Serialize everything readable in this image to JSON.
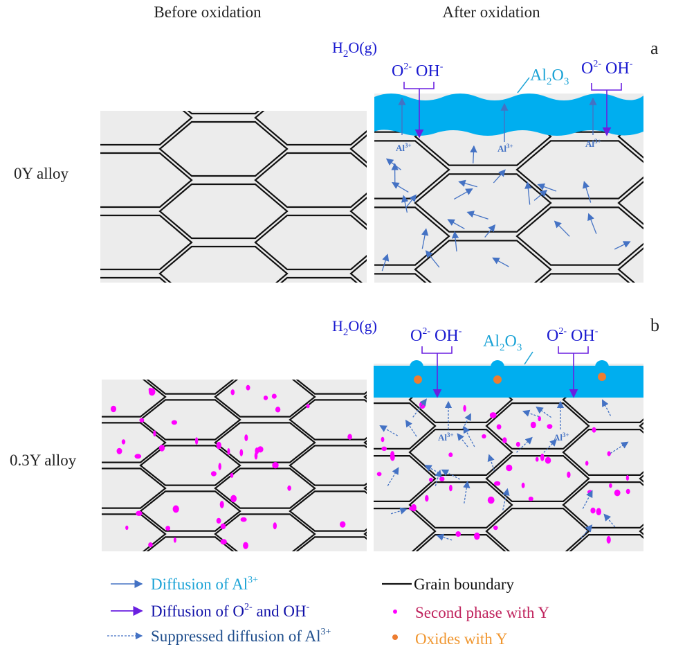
{
  "headers": {
    "before": "Before oxidation",
    "after": "After oxidation"
  },
  "rows": [
    {
      "label": "0Y alloy",
      "panel_letter": "a"
    },
    {
      "label": "0.3Y alloy",
      "panel_letter": "b"
    }
  ],
  "annotations": {
    "water": {
      "main": "H",
      "sub": "2",
      "tail": "O(g)"
    },
    "oxygen_ion": {
      "main": "O",
      "sup": "2-"
    },
    "hydroxide_ion": {
      "main": "OH",
      "sup": "-"
    },
    "alumina": {
      "a": "Al",
      "sub1": "2",
      "b": "O",
      "sub2": "3"
    },
    "al_ion": {
      "main": "Al",
      "sup": "3+"
    }
  },
  "legend": {
    "al_diffusion": {
      "text": "Diffusion of Al",
      "sup": "3+"
    },
    "o_diffusion": {
      "text": "Diffusion of O",
      "sup1": "2-",
      "mid": " and OH",
      "sup2": "-"
    },
    "suppressed": {
      "text": "Suppressed diffusion of Al",
      "sup": "3+"
    },
    "grain_boundary": "Grain boundary",
    "second_phase": "Second phase with Y",
    "oxides": "Oxides with Y"
  },
  "colors": {
    "matrix": "#ececec",
    "oxide_scale": "#00aeef",
    "al_arrow": "#4472c4",
    "o_arrow": "#6a1fe0",
    "second_phase": "#ff00ff",
    "oxides_y": "#ed7d31",
    "water_text": "#1a1ad0",
    "alumina_text": "#1ba3d6",
    "second_phase_text": "#c0245e",
    "oxides_text": "#f0962f"
  }
}
